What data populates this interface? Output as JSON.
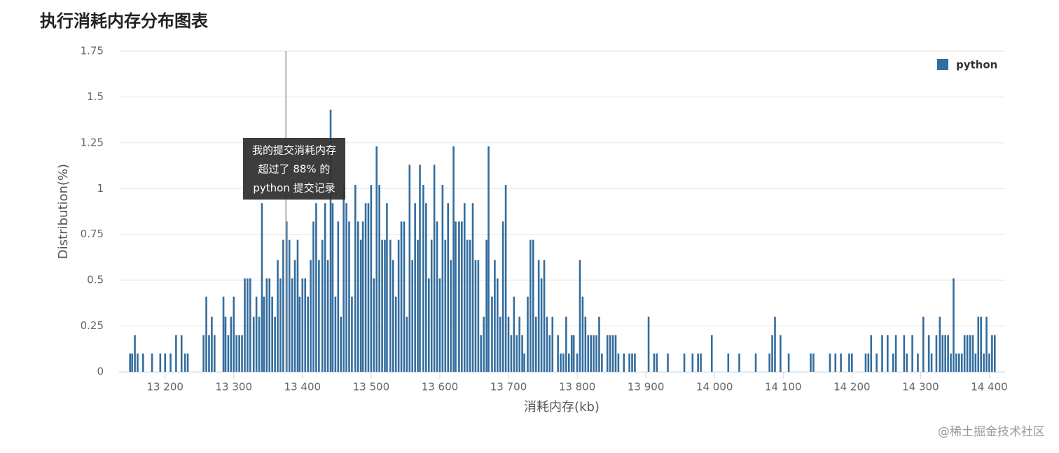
{
  "chart_data": {
    "type": "bar",
    "title": "执行消耗内存分布图表",
    "xlabel": "消耗内存(kb)",
    "ylabel": "Distribution(%)",
    "legend": "top-right",
    "grid": true,
    "xlim": [
      13133,
      14423
    ],
    "ylim": [
      0,
      1.75
    ],
    "xticks": [
      {
        "value": 13200,
        "label": "13 200"
      },
      {
        "value": 13300,
        "label": "13 300"
      },
      {
        "value": 13400,
        "label": "13 400"
      },
      {
        "value": 13500,
        "label": "13 500"
      },
      {
        "value": 13600,
        "label": "13 600"
      },
      {
        "value": 13700,
        "label": "13 700"
      },
      {
        "value": 13800,
        "label": "13 800"
      },
      {
        "value": 13900,
        "label": "13 900"
      },
      {
        "value": 14000,
        "label": "14 000"
      },
      {
        "value": 14100,
        "label": "14 100"
      },
      {
        "value": 14200,
        "label": "14 200"
      },
      {
        "value": 14300,
        "label": "14 300"
      },
      {
        "value": 14400,
        "label": "14 400"
      }
    ],
    "yticks": [
      0,
      0.25,
      0.5,
      0.75,
      1,
      1.25,
      1.5,
      1.75
    ],
    "annotation": {
      "x": 13376,
      "lines": [
        "我的提交消耗内存",
        "超过了 88% 的",
        "python 提交记录"
      ]
    },
    "x": [
      13149,
      13152,
      13156,
      13160,
      13168,
      13181,
      13193,
      13200,
      13208,
      13216,
      13224,
      13229,
      13233,
      13256,
      13260,
      13264,
      13268,
      13272,
      13285,
      13288,
      13292,
      13296,
      13300,
      13304,
      13308,
      13312,
      13316,
      13320,
      13324,
      13329,
      13333,
      13337,
      13341,
      13344,
      13348,
      13352,
      13356,
      13360,
      13364,
      13368,
      13372,
      13377,
      13381,
      13385,
      13389,
      13393,
      13396,
      13400,
      13404,
      13408,
      13412,
      13416,
      13420,
      13424,
      13429,
      13433,
      13437,
      13441,
      13444,
      13448,
      13452,
      13456,
      13460,
      13464,
      13468,
      13472,
      13477,
      13481,
      13485,
      13488,
      13492,
      13496,
      13500,
      13504,
      13508,
      13512,
      13516,
      13520,
      13523,
      13528,
      13532,
      13536,
      13540,
      13544,
      13548,
      13552,
      13556,
      13560,
      13564,
      13568,
      13571,
      13576,
      13580,
      13584,
      13588,
      13592,
      13596,
      13600,
      13604,
      13608,
      13612,
      13616,
      13620,
      13623,
      13628,
      13632,
      13636,
      13640,
      13644,
      13648,
      13652,
      13656,
      13660,
      13664,
      13668,
      13671,
      13676,
      13680,
      13684,
      13688,
      13692,
      13696,
      13700,
      13704,
      13708,
      13712,
      13716,
      13720,
      13723,
      13728,
      13732,
      13736,
      13740,
      13744,
      13748,
      13752,
      13756,
      13760,
      13764,
      13772,
      13776,
      13780,
      13784,
      13788,
      13792,
      13795,
      13800,
      13804,
      13808,
      13812,
      13816,
      13820,
      13824,
      13828,
      13832,
      13836,
      13844,
      13848,
      13852,
      13856,
      13860,
      13868,
      13876,
      13880,
      13884,
      13904,
      13912,
      13916,
      13932,
      13956,
      13968,
      13976,
      13980,
      13996,
      14020,
      14036,
      14060,
      14080,
      14084,
      14088,
      14096,
      14108,
      14140,
      14144,
      14168,
      14176,
      14184,
      14196,
      14200,
      14220,
      14224,
      14228,
      14236,
      14244,
      14252,
      14260,
      14264,
      14276,
      14280,
      14288,
      14296,
      14304,
      14312,
      14316,
      14323,
      14328,
      14332,
      14336,
      14340,
      14344,
      14348,
      14352,
      14356,
      14360,
      14364,
      14368,
      14372,
      14376,
      14380,
      14384,
      14388,
      14392,
      14396,
      14400,
      14404,
      14408
    ],
    "series": [
      {
        "name": "python",
        "color": "#336d9e",
        "values": [
          0.1,
          0.1,
          0.2,
          0.1,
          0.1,
          0.1,
          0.1,
          0.1,
          0.1,
          0.2,
          0.2,
          0.1,
          0.1,
          0.2,
          0.41,
          0.2,
          0.3,
          0.2,
          0.41,
          0.3,
          0.2,
          0.3,
          0.41,
          0.2,
          0.2,
          0.2,
          0.51,
          0.51,
          0.51,
          0.3,
          0.41,
          0.3,
          0.92,
          0.41,
          0.51,
          0.51,
          0.41,
          0.3,
          0.61,
          0.51,
          0.72,
          0.82,
          0.72,
          0.51,
          0.61,
          0.72,
          0.41,
          0.51,
          0.51,
          0.41,
          0.61,
          0.82,
          0.92,
          0.61,
          0.72,
          0.92,
          0.61,
          1.43,
          0.92,
          0.41,
          0.82,
          0.3,
          1.02,
          0.92,
          0.82,
          0.41,
          1.02,
          0.82,
          0.72,
          0.82,
          0.92,
          0.92,
          1.02,
          0.51,
          1.23,
          1.02,
          0.72,
          0.72,
          0.92,
          0.72,
          0.61,
          0.41,
          0.72,
          0.82,
          0.82,
          0.3,
          1.13,
          0.61,
          0.92,
          0.72,
          1.13,
          1.02,
          0.92,
          0.51,
          0.72,
          1.13,
          0.82,
          0.51,
          1.02,
          0.72,
          0.92,
          0.61,
          1.23,
          0.82,
          0.82,
          0.82,
          0.92,
          0.72,
          0.72,
          0.92,
          0.61,
          0.61,
          0.2,
          0.3,
          0.72,
          1.23,
          0.41,
          0.61,
          0.51,
          0.3,
          0.82,
          1.02,
          0.3,
          0.2,
          0.41,
          0.2,
          0.3,
          0.2,
          0.1,
          0.41,
          0.72,
          0.72,
          0.3,
          0.61,
          0.51,
          0.61,
          0.3,
          0.2,
          0.3,
          0.2,
          0.1,
          0.1,
          0.3,
          0.1,
          0.2,
          0.2,
          0.1,
          0.61,
          0.41,
          0.3,
          0.2,
          0.2,
          0.2,
          0.2,
          0.3,
          0.1,
          0.2,
          0.2,
          0.2,
          0.2,
          0.1,
          0.1,
          0.1,
          0.1,
          0.1,
          0.3,
          0.1,
          0.1,
          0.1,
          0.1,
          0.1,
          0.1,
          0.1,
          0.2,
          0.1,
          0.1,
          0.1,
          0.1,
          0.2,
          0.3,
          0.2,
          0.1,
          0.1,
          0.1,
          0.1,
          0.1,
          0.1,
          0.1,
          0.1,
          0.1,
          0.1,
          0.2,
          0.1,
          0.2,
          0.2,
          0.1,
          0.2,
          0.2,
          0.1,
          0.2,
          0.1,
          0.3,
          0.2,
          0.1,
          0.2,
          0.3,
          0.2,
          0.2,
          0.2,
          0.1,
          0.51,
          0.1,
          0.1,
          0.1,
          0.2,
          0.2,
          0.2,
          0.2,
          0.1,
          0.3,
          0.3,
          0.1,
          0.3,
          0.1,
          0.2,
          0.2
        ]
      }
    ]
  },
  "watermark": "@稀土掘金技术社区"
}
